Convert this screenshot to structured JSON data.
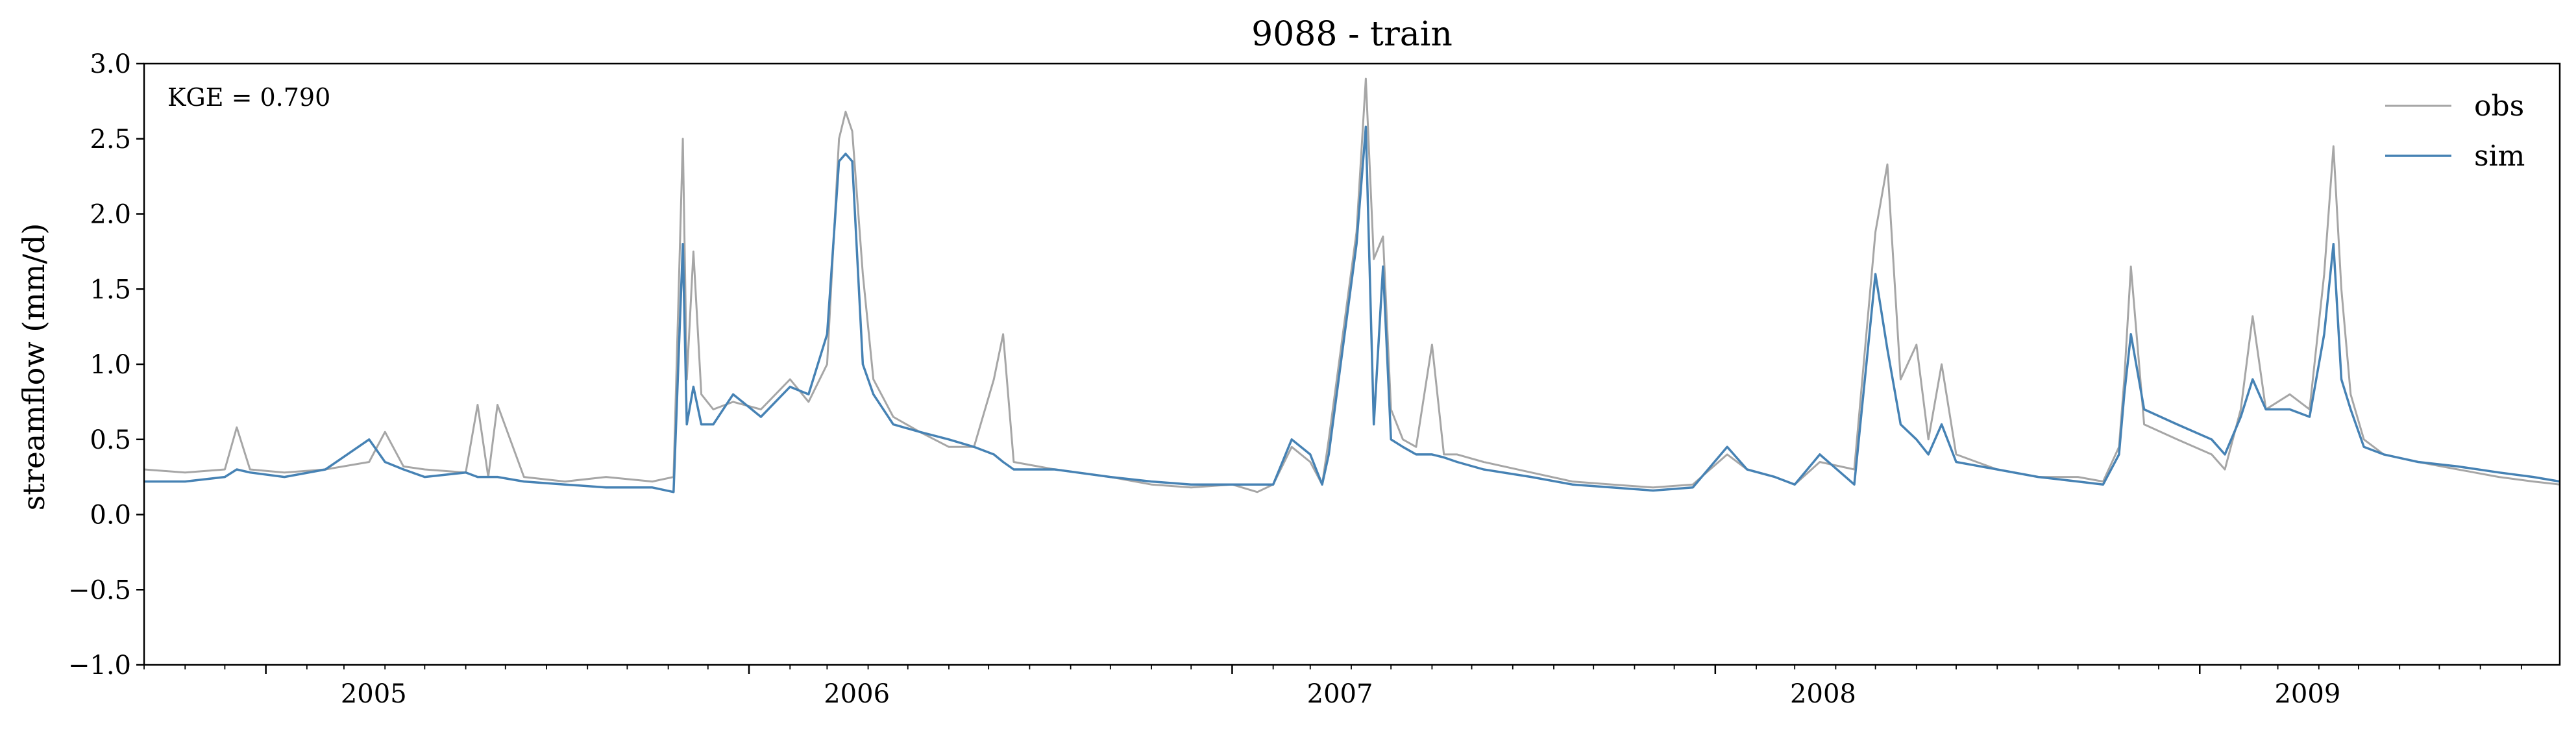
{
  "chart_data": {
    "type": "line",
    "title": "9088 - train",
    "xlabel": "",
    "ylabel": "streamflow (mm/d)",
    "annotation": "KGE = 0.790",
    "xlim": [
      "2004-10-01",
      "2009-09-30"
    ],
    "ylim": [
      -1.0,
      3.0
    ],
    "y_ticks": [
      -1.0,
      -0.5,
      0.0,
      0.5,
      1.0,
      1.5,
      2.0,
      2.5,
      3.0
    ],
    "y_tick_labels": [
      "−1.0",
      "−0.5",
      "0.0",
      "0.5",
      "1.0",
      "1.5",
      "2.0",
      "2.5",
      "3.0"
    ],
    "x_ticks": [
      "2005-01-01",
      "2006-01-01",
      "2007-01-01",
      "2008-01-01",
      "2009-01-01"
    ],
    "x_tick_labels": [
      "2005",
      "2006",
      "2007",
      "2008",
      "2009"
    ],
    "legend_position": "top-right",
    "grid": false,
    "series": [
      {
        "name": "obs",
        "color": "#a6a6a6",
        "x": [
          "2004-10-01",
          "2004-11-01",
          "2004-12-01",
          "2004-12-10",
          "2004-12-20",
          "2005-01-15",
          "2005-02-15",
          "2005-03-20",
          "2005-04-01",
          "2005-04-15",
          "2005-05-01",
          "2005-06-01",
          "2005-06-10",
          "2005-06-18",
          "2005-06-25",
          "2005-07-15",
          "2005-08-15",
          "2005-09-15",
          "2005-10-20",
          "2005-11-05",
          "2005-11-12",
          "2005-11-15",
          "2005-11-20",
          "2005-11-26",
          "2005-12-05",
          "2005-12-20",
          "2006-01-10",
          "2006-02-01",
          "2006-02-15",
          "2006-03-01",
          "2006-03-10",
          "2006-03-15",
          "2006-03-20",
          "2006-03-28",
          "2006-04-05",
          "2006-04-20",
          "2006-05-10",
          "2006-06-01",
          "2006-06-20",
          "2006-07-05",
          "2006-07-12",
          "2006-07-20",
          "2006-08-20",
          "2006-10-01",
          "2006-11-01",
          "2006-12-01",
          "2007-01-01",
          "2007-01-20",
          "2007-02-01",
          "2007-02-15",
          "2007-03-01",
          "2007-03-10",
          "2007-03-15",
          "2007-04-05",
          "2007-04-12",
          "2007-04-18",
          "2007-04-25",
          "2007-05-01",
          "2007-05-10",
          "2007-05-20",
          "2007-06-01",
          "2007-06-10",
          "2007-06-20",
          "2007-07-10",
          "2007-08-15",
          "2007-09-15",
          "2007-10-15",
          "2007-11-15",
          "2007-12-15",
          "2008-01-10",
          "2008-01-25",
          "2008-02-15",
          "2008-03-01",
          "2008-03-20",
          "2008-04-15",
          "2008-05-01",
          "2008-05-10",
          "2008-05-20",
          "2008-06-01",
          "2008-06-10",
          "2008-06-20",
          "2008-07-01",
          "2008-08-01",
          "2008-09-01",
          "2008-10-01",
          "2008-10-20",
          "2008-11-01",
          "2008-11-05",
          "2008-11-10",
          "2008-11-20",
          "2008-12-15",
          "2009-01-10",
          "2009-01-20",
          "2009-02-01",
          "2009-02-10",
          "2009-02-20",
          "2009-03-10",
          "2009-03-25",
          "2009-04-05",
          "2009-04-12",
          "2009-04-18",
          "2009-04-25",
          "2009-05-05",
          "2009-05-20",
          "2009-06-15",
          "2009-07-15",
          "2009-08-15",
          "2009-09-10",
          "2009-09-30"
        ],
        "values": [
          0.3,
          0.28,
          0.3,
          0.58,
          0.3,
          0.28,
          0.3,
          0.35,
          0.55,
          0.32,
          0.3,
          0.28,
          0.73,
          0.25,
          0.73,
          0.25,
          0.22,
          0.25,
          0.22,
          0.25,
          2.5,
          0.9,
          1.75,
          0.8,
          0.7,
          0.75,
          0.7,
          0.9,
          0.75,
          1.0,
          2.5,
          2.68,
          2.55,
          1.6,
          0.9,
          0.65,
          0.55,
          0.45,
          0.45,
          0.9,
          1.2,
          0.35,
          0.3,
          0.25,
          0.2,
          0.18,
          0.2,
          0.15,
          0.2,
          0.45,
          0.35,
          0.2,
          0.5,
          1.88,
          2.9,
          1.7,
          1.85,
          0.7,
          0.5,
          0.45,
          1.13,
          0.4,
          0.4,
          0.35,
          0.28,
          0.22,
          0.2,
          0.18,
          0.2,
          0.4,
          0.3,
          0.25,
          0.2,
          0.35,
          0.3,
          1.88,
          2.33,
          0.9,
          1.13,
          0.5,
          1.0,
          0.4,
          0.3,
          0.25,
          0.25,
          0.22,
          0.45,
          0.9,
          1.65,
          0.6,
          0.5,
          0.4,
          0.3,
          0.7,
          1.32,
          0.7,
          0.8,
          0.7,
          1.6,
          2.45,
          1.5,
          0.8,
          0.5,
          0.4,
          0.35,
          0.3,
          0.25,
          0.22,
          0.2
        ]
      },
      {
        "name": "sim",
        "color": "#4682b4",
        "x": [
          "2004-10-01",
          "2004-11-01",
          "2004-12-01",
          "2004-12-10",
          "2004-12-20",
          "2005-01-15",
          "2005-02-15",
          "2005-03-20",
          "2005-04-01",
          "2005-04-15",
          "2005-05-01",
          "2005-06-01",
          "2005-06-10",
          "2005-06-18",
          "2005-06-25",
          "2005-07-15",
          "2005-08-15",
          "2005-09-15",
          "2005-10-20",
          "2005-11-05",
          "2005-11-12",
          "2005-11-15",
          "2005-11-20",
          "2005-11-26",
          "2005-12-05",
          "2005-12-20",
          "2006-01-10",
          "2006-02-01",
          "2006-02-15",
          "2006-03-01",
          "2006-03-10",
          "2006-03-15",
          "2006-03-20",
          "2006-03-28",
          "2006-04-05",
          "2006-04-20",
          "2006-05-10",
          "2006-06-01",
          "2006-06-20",
          "2006-07-05",
          "2006-07-12",
          "2006-07-20",
          "2006-08-20",
          "2006-10-01",
          "2006-11-01",
          "2006-12-01",
          "2007-01-01",
          "2007-01-20",
          "2007-02-01",
          "2007-02-15",
          "2007-03-01",
          "2007-03-10",
          "2007-03-15",
          "2007-04-05",
          "2007-04-12",
          "2007-04-18",
          "2007-04-25",
          "2007-05-01",
          "2007-05-10",
          "2007-05-20",
          "2007-06-01",
          "2007-06-10",
          "2007-06-20",
          "2007-07-10",
          "2007-08-15",
          "2007-09-15",
          "2007-10-15",
          "2007-11-15",
          "2007-12-15",
          "2008-01-10",
          "2008-01-25",
          "2008-02-15",
          "2008-03-01",
          "2008-03-20",
          "2008-04-15",
          "2008-05-01",
          "2008-05-10",
          "2008-05-20",
          "2008-06-01",
          "2008-06-10",
          "2008-06-20",
          "2008-07-01",
          "2008-08-01",
          "2008-09-01",
          "2008-10-01",
          "2008-10-20",
          "2008-11-01",
          "2008-11-05",
          "2008-11-10",
          "2008-11-20",
          "2008-12-15",
          "2009-01-10",
          "2009-01-20",
          "2009-02-01",
          "2009-02-10",
          "2009-02-20",
          "2009-03-10",
          "2009-03-25",
          "2009-04-05",
          "2009-04-12",
          "2009-04-18",
          "2009-04-25",
          "2009-05-05",
          "2009-05-20",
          "2009-06-15",
          "2009-07-15",
          "2009-08-15",
          "2009-09-10",
          "2009-09-30"
        ],
        "values": [
          0.22,
          0.22,
          0.25,
          0.3,
          0.28,
          0.25,
          0.3,
          0.5,
          0.35,
          0.3,
          0.25,
          0.28,
          0.25,
          0.25,
          0.25,
          0.22,
          0.2,
          0.18,
          0.18,
          0.15,
          1.8,
          0.6,
          0.85,
          0.6,
          0.6,
          0.8,
          0.65,
          0.85,
          0.8,
          1.2,
          2.35,
          2.4,
          2.35,
          1.0,
          0.8,
          0.6,
          0.55,
          0.5,
          0.45,
          0.4,
          0.35,
          0.3,
          0.3,
          0.25,
          0.22,
          0.2,
          0.2,
          0.2,
          0.2,
          0.5,
          0.4,
          0.2,
          0.4,
          1.8,
          2.58,
          0.6,
          1.65,
          0.5,
          0.45,
          0.4,
          0.4,
          0.38,
          0.35,
          0.3,
          0.25,
          0.2,
          0.18,
          0.16,
          0.18,
          0.45,
          0.3,
          0.25,
          0.2,
          0.4,
          0.2,
          1.6,
          1.1,
          0.6,
          0.5,
          0.4,
          0.6,
          0.35,
          0.3,
          0.25,
          0.22,
          0.2,
          0.4,
          0.8,
          1.2,
          0.7,
          0.6,
          0.5,
          0.4,
          0.65,
          0.9,
          0.7,
          0.7,
          0.65,
          1.2,
          1.8,
          0.9,
          0.7,
          0.45,
          0.4,
          0.35,
          0.32,
          0.28,
          0.25,
          0.22
        ]
      }
    ]
  }
}
